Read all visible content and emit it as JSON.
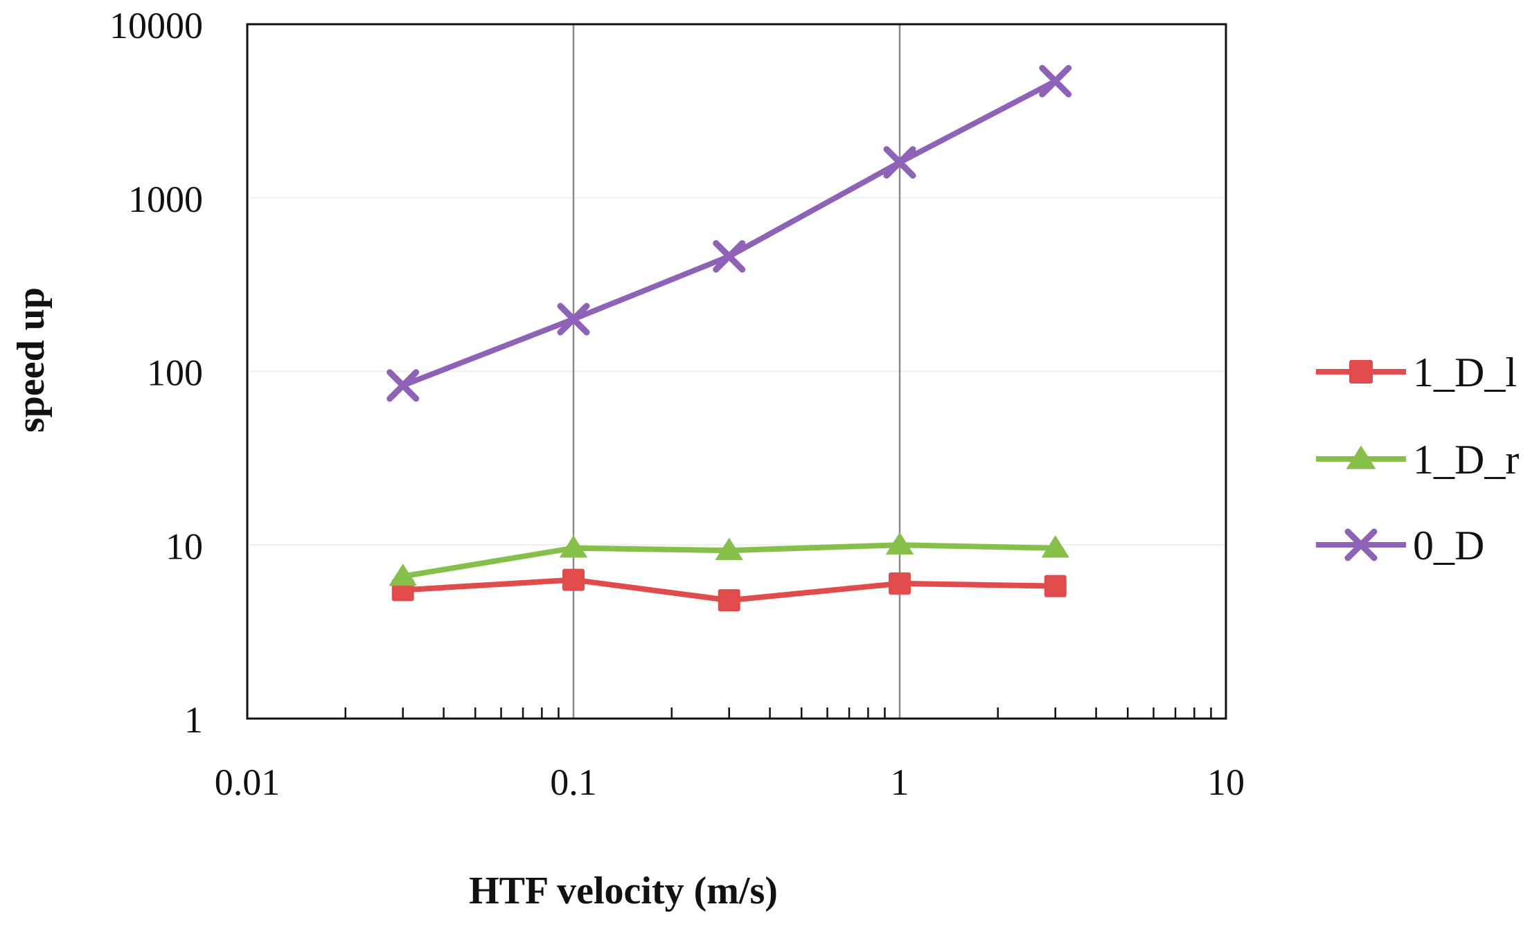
{
  "chart_data": {
    "type": "line",
    "title": "",
    "xlabel": "HTF velocity (m/s)",
    "ylabel": "speed up",
    "xscale": "log",
    "yscale": "log",
    "xlim": [
      0.01,
      10
    ],
    "ylim": [
      1,
      10000
    ],
    "x_ticks": [
      0.01,
      0.1,
      1,
      10
    ],
    "x_tick_labels": [
      "0.01",
      "0.1",
      "1",
      "10"
    ],
    "y_ticks": [
      1,
      10,
      100,
      1000,
      10000
    ],
    "y_tick_labels": [
      "1",
      "10",
      "100",
      "1000",
      "10000"
    ],
    "grid": "major vertical gridlines at 0.1 and 1",
    "legend_position": "right",
    "x": [
      0.03,
      0.1,
      0.3,
      1,
      3
    ],
    "series": [
      {
        "name": "1_D_l",
        "marker": "square",
        "color": "#e04b4b",
        "values": [
          5.5,
          6.3,
          4.8,
          6.0,
          5.8
        ]
      },
      {
        "name": "1_D_r",
        "marker": "triangle",
        "color": "#86c04a",
        "values": [
          6.6,
          9.6,
          9.3,
          10.0,
          9.6
        ]
      },
      {
        "name": "0_D",
        "marker": "x",
        "color": "#8e62b6",
        "values": [
          83,
          200,
          460,
          1600,
          4700
        ]
      }
    ]
  }
}
